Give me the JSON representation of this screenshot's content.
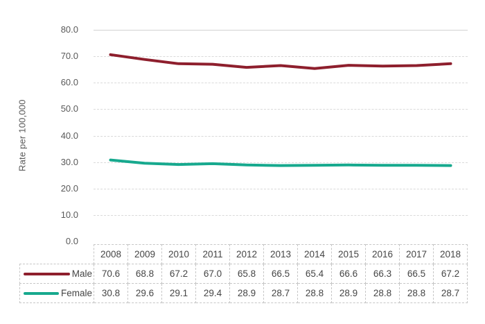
{
  "chart_data": {
    "type": "line",
    "title": "",
    "ylabel": "Rate per 100,000",
    "xlabel": "",
    "x": [
      "2008",
      "2009",
      "2010",
      "2011",
      "2012",
      "2013",
      "2014",
      "2015",
      "2016",
      "2017",
      "2018"
    ],
    "series": [
      {
        "name": "Male",
        "color": "#8E1F2D",
        "values": [
          70.6,
          68.8,
          67.2,
          67.0,
          65.8,
          66.5,
          65.4,
          66.6,
          66.3,
          66.5,
          67.2
        ]
      },
      {
        "name": "Female",
        "color": "#17A98E",
        "values": [
          30.8,
          29.6,
          29.1,
          29.4,
          28.9,
          28.7,
          28.8,
          28.9,
          28.8,
          28.8,
          28.7
        ]
      }
    ],
    "ylim": [
      0,
      80
    ],
    "yticks": [
      0,
      10,
      20,
      30,
      40,
      50,
      60,
      70,
      80
    ],
    "ytick_labels": [
      "0.0",
      "10.0",
      "20.0",
      "30.0",
      "40.0",
      "50.0",
      "60.0",
      "70.0",
      "80.0"
    ],
    "grid": "horizontal-dashed-gray",
    "legend_position": "table-left-column",
    "value_decimals": 1,
    "colors": {
      "gridline": "#D9D9D9",
      "axis_text": "#595959",
      "table_text": "#454545",
      "table_border": "#C6C6C6",
      "background": "#FFFFFF"
    }
  }
}
